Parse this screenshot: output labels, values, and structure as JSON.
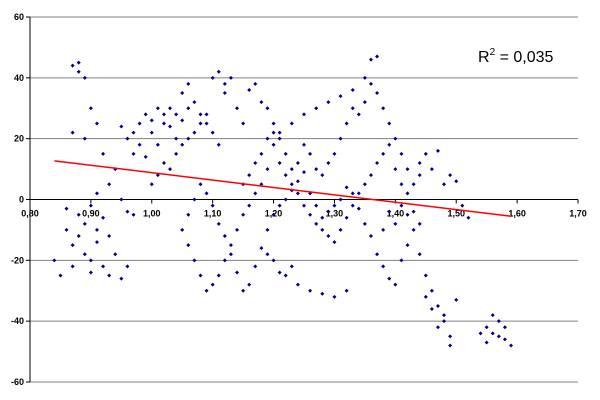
{
  "chart_data": {
    "type": "scatter",
    "title": "",
    "xlabel": "",
    "ylabel": "",
    "xlim": [
      0.8,
      1.7
    ],
    "ylim": [
      -60,
      60
    ],
    "x_ticks": [
      "0,80",
      "0,90",
      "1,00",
      "1,10",
      "1,20",
      "1,30",
      "1,40",
      "1,50",
      "1,60",
      "1,70"
    ],
    "y_ticks": [
      "60",
      "40",
      "20",
      "0",
      "-20",
      "-40",
      "-60"
    ],
    "grid": "horizontal",
    "legend": "none",
    "annotation": {
      "r2_prefix": "R",
      "r2_exp": "2",
      "r2_value": " = 0,035"
    },
    "trendline": {
      "x0": 0.84,
      "y0": 12.7,
      "x1": 1.59,
      "y1": -5.5,
      "color": "#ff0000"
    },
    "marker_color": "#00008b",
    "series": [
      {
        "points": [
          [
            0.84,
            -20
          ],
          [
            0.85,
            -25
          ],
          [
            0.86,
            -3
          ],
          [
            0.86,
            -10
          ],
          [
            0.87,
            -15
          ],
          [
            0.87,
            -22
          ],
          [
            0.88,
            -5
          ],
          [
            0.88,
            -12
          ],
          [
            0.89,
            -8
          ],
          [
            0.89,
            -18
          ],
          [
            0.9,
            -20
          ],
          [
            0.9,
            -24
          ],
          [
            0.91,
            -10
          ],
          [
            0.91,
            -14
          ],
          [
            0.92,
            -22
          ],
          [
            0.93,
            -25
          ],
          [
            0.94,
            -18
          ],
          [
            0.95,
            -26
          ],
          [
            0.96,
            -22
          ],
          [
            0.96,
            -4
          ],
          [
            0.87,
            44
          ],
          [
            0.88,
            42
          ],
          [
            0.89,
            40
          ],
          [
            0.88,
            45
          ],
          [
            0.87,
            22
          ],
          [
            0.89,
            20
          ],
          [
            0.9,
            30
          ],
          [
            0.91,
            25
          ],
          [
            0.92,
            15
          ],
          [
            0.93,
            5
          ],
          [
            0.94,
            10
          ],
          [
            0.95,
            0
          ],
          [
            0.91,
            2
          ],
          [
            0.9,
            -2
          ],
          [
            0.92,
            -6
          ],
          [
            0.93,
            -12
          ],
          [
            0.97,
            -5
          ],
          [
            0.95,
            24
          ],
          [
            0.96,
            20
          ],
          [
            0.97,
            15
          ],
          [
            0.98,
            25
          ],
          [
            0.99,
            28
          ],
          [
            1.0,
            22
          ],
          [
            1.01,
            18
          ],
          [
            1.02,
            25
          ],
          [
            1.03,
            30
          ],
          [
            1.04,
            28
          ],
          [
            1.05,
            35
          ],
          [
            1.06,
            38
          ],
          [
            1.07,
            32
          ],
          [
            1.08,
            28
          ],
          [
            1.09,
            25
          ],
          [
            1.1,
            22
          ],
          [
            1.11,
            18
          ],
          [
            1.12,
            35
          ],
          [
            1.13,
            40
          ],
          [
            1.1,
            40
          ],
          [
            1.11,
            42
          ],
          [
            1.12,
            38
          ],
          [
            1.14,
            30
          ],
          [
            1.15,
            25
          ],
          [
            1.16,
            36
          ],
          [
            1.17,
            38
          ],
          [
            1.18,
            32
          ],
          [
            1.19,
            30
          ],
          [
            1.2,
            25
          ],
          [
            1.21,
            20
          ],
          [
            1.22,
            15
          ],
          [
            1.23,
            10
          ],
          [
            1.24,
            12
          ],
          [
            1.25,
            18
          ],
          [
            1.26,
            15
          ],
          [
            1.27,
            10
          ],
          [
            1.28,
            8
          ],
          [
            1.29,
            12
          ],
          [
            1.3,
            15
          ],
          [
            1.31,
            20
          ],
          [
            1.32,
            25
          ],
          [
            1.33,
            30
          ],
          [
            1.34,
            28
          ],
          [
            1.35,
            32
          ],
          [
            1.36,
            38
          ],
          [
            1.37,
            35
          ],
          [
            1.38,
            30
          ],
          [
            1.39,
            25
          ],
          [
            1.4,
            20
          ],
          [
            1.41,
            15
          ],
          [
            1.42,
            10
          ],
          [
            1.43,
            5
          ],
          [
            1.44,
            8
          ],
          [
            1.36,
            46
          ],
          [
            1.37,
            47
          ],
          [
            1.35,
            40
          ],
          [
            1.33,
            36
          ],
          [
            1.31,
            34
          ],
          [
            1.29,
            32
          ],
          [
            1.27,
            30
          ],
          [
            1.25,
            28
          ],
          [
            1.23,
            25
          ],
          [
            1.21,
            22
          ],
          [
            1.2,
            18
          ],
          [
            1.19,
            10
          ],
          [
            1.18,
            5
          ],
          [
            1.17,
            2
          ],
          [
            1.16,
            -2
          ],
          [
            1.15,
            -5
          ],
          [
            1.14,
            -10
          ],
          [
            1.13,
            -15
          ],
          [
            1.12,
            -20
          ],
          [
            1.11,
            -25
          ],
          [
            1.1,
            -28
          ],
          [
            1.09,
            -30
          ],
          [
            1.08,
            -25
          ],
          [
            1.07,
            -20
          ],
          [
            1.06,
            -15
          ],
          [
            1.05,
            -10
          ],
          [
            1.06,
            -5
          ],
          [
            1.07,
            0
          ],
          [
            1.08,
            5
          ],
          [
            1.09,
            2
          ],
          [
            1.1,
            -2
          ],
          [
            1.11,
            -8
          ],
          [
            1.12,
            -12
          ],
          [
            1.13,
            -18
          ],
          [
            1.14,
            -24
          ],
          [
            1.15,
            -30
          ],
          [
            1.16,
            -28
          ],
          [
            1.17,
            -22
          ],
          [
            1.18,
            -16
          ],
          [
            1.19,
            -10
          ],
          [
            1.2,
            -5
          ],
          [
            1.21,
            -2
          ],
          [
            1.22,
            0
          ],
          [
            1.23,
            3
          ],
          [
            1.24,
            6
          ],
          [
            1.25,
            9
          ],
          [
            1.26,
            2
          ],
          [
            1.27,
            -2
          ],
          [
            1.28,
            -6
          ],
          [
            1.29,
            -4
          ],
          [
            1.3,
            -2
          ],
          [
            1.31,
            0
          ],
          [
            1.32,
            4
          ],
          [
            1.33,
            2
          ],
          [
            1.34,
            -3
          ],
          [
            1.35,
            -8
          ],
          [
            1.36,
            -12
          ],
          [
            1.37,
            -18
          ],
          [
            1.38,
            -22
          ],
          [
            1.39,
            -26
          ],
          [
            1.4,
            -28
          ],
          [
            1.41,
            -20
          ],
          [
            1.42,
            -15
          ],
          [
            1.43,
            -10
          ],
          [
            1.44,
            -18
          ],
          [
            1.45,
            -25
          ],
          [
            1.46,
            -30
          ],
          [
            1.47,
            -35
          ],
          [
            1.48,
            -40
          ],
          [
            1.49,
            -45
          ],
          [
            1.48,
            -38
          ],
          [
            1.47,
            -42
          ],
          [
            1.46,
            -36
          ],
          [
            1.45,
            -32
          ],
          [
            1.5,
            -33
          ],
          [
            1.49,
            -48
          ],
          [
            1.44,
            12
          ],
          [
            1.45,
            15
          ],
          [
            1.46,
            10
          ],
          [
            1.47,
            16
          ],
          [
            1.48,
            5
          ],
          [
            1.49,
            8
          ],
          [
            1.5,
            6
          ],
          [
            1.51,
            -2
          ],
          [
            1.52,
            -6
          ],
          [
            1.42,
            -5
          ],
          [
            1.41,
            -2
          ],
          [
            1.4,
            -8
          ],
          [
            1.39,
            -4
          ],
          [
            1.38,
            -10
          ],
          [
            1.22,
            -25
          ],
          [
            1.24,
            -28
          ],
          [
            1.26,
            -30
          ],
          [
            1.28,
            -31
          ],
          [
            1.3,
            -32
          ],
          [
            1.32,
            -30
          ],
          [
            1.2,
            -20
          ],
          [
            1.21,
            -24
          ],
          [
            1.19,
            -18
          ],
          [
            1.23,
            -22
          ],
          [
            1.55,
            -42
          ],
          [
            1.56,
            -44
          ],
          [
            1.57,
            -40
          ],
          [
            1.58,
            -46
          ],
          [
            1.59,
            -48
          ],
          [
            1.56,
            -38
          ],
          [
            1.57,
            -45
          ],
          [
            1.55,
            -47
          ],
          [
            1.58,
            -42
          ],
          [
            1.54,
            -44
          ],
          [
            1.15,
            5
          ],
          [
            1.16,
            8
          ],
          [
            1.17,
            12
          ],
          [
            1.18,
            15
          ],
          [
            1.19,
            20
          ],
          [
            1.2,
            22
          ],
          [
            1.21,
            12
          ],
          [
            1.22,
            8
          ],
          [
            1.23,
            5
          ],
          [
            1.24,
            2
          ],
          [
            1.25,
            -2
          ],
          [
            1.26,
            -5
          ],
          [
            1.27,
            -8
          ],
          [
            1.28,
            -10
          ],
          [
            1.29,
            -12
          ],
          [
            1.3,
            -14
          ],
          [
            1.31,
            -10
          ],
          [
            1.32,
            -6
          ],
          [
            1.33,
            -2
          ],
          [
            1.34,
            2
          ],
          [
            1.35,
            5
          ],
          [
            1.36,
            8
          ],
          [
            1.37,
            12
          ],
          [
            1.38,
            15
          ],
          [
            1.39,
            18
          ],
          [
            1.4,
            10
          ],
          [
            1.41,
            5
          ],
          [
            1.42,
            2
          ],
          [
            1.43,
            -4
          ],
          [
            1.44,
            -8
          ],
          [
            1.0,
            5
          ],
          [
            1.01,
            8
          ],
          [
            1.02,
            12
          ],
          [
            1.03,
            10
          ],
          [
            1.04,
            15
          ],
          [
            1.05,
            18
          ],
          [
            1.06,
            20
          ],
          [
            1.07,
            22
          ],
          [
            1.08,
            25
          ],
          [
            1.09,
            28
          ],
          [
            0.97,
            22
          ],
          [
            0.98,
            18
          ],
          [
            0.99,
            14
          ],
          [
            1.0,
            26
          ],
          [
            1.01,
            30
          ],
          [
            1.02,
            28
          ],
          [
            1.03,
            24
          ],
          [
            1.04,
            20
          ],
          [
            1.05,
            26
          ],
          [
            1.06,
            30
          ]
        ]
      }
    ]
  }
}
